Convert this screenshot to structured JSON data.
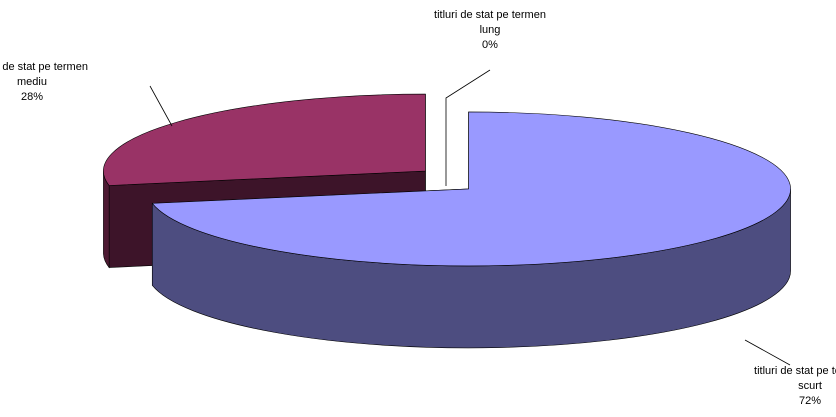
{
  "chart_data": {
    "type": "pie3d",
    "categories": [
      "titluri de stat pe termen scurt",
      "titluri de stat pe termen mediu",
      "titluri de stat pe termen lung"
    ],
    "values": [
      72,
      28,
      0
    ],
    "value_labels": [
      "72%",
      "28%",
      "0%"
    ],
    "colors": [
      "#9999ff",
      "#993366",
      "#ffffcc"
    ]
  }
}
